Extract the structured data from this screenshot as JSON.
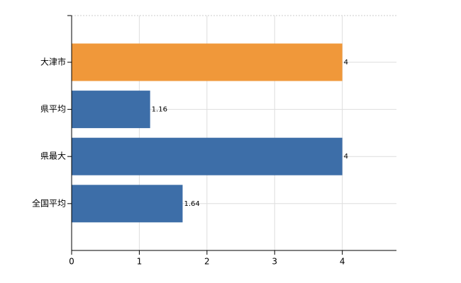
{
  "chart_data": {
    "type": "bar",
    "orientation": "horizontal",
    "categories": [
      "大津市",
      "県平均",
      "県最大",
      "全国平均"
    ],
    "values": [
      4,
      1.16,
      4,
      1.64
    ],
    "colors": [
      "#f0983a",
      "#3d6ea8",
      "#3d6ea8",
      "#3d6ea8"
    ],
    "xlim": [
      0,
      4.8
    ],
    "xticks": [
      0,
      1,
      2,
      3,
      4
    ],
    "grid": true
  }
}
